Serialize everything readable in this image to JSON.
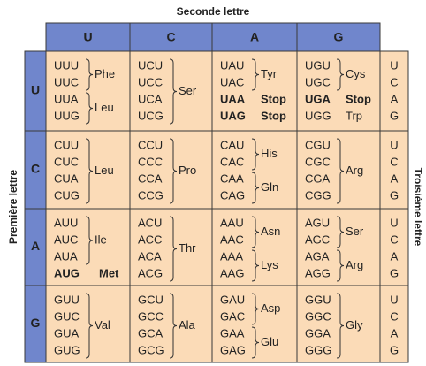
{
  "top_label": "Seconde lettre",
  "left_label": "Première lettre",
  "right_label": "Troisième lettre",
  "second_letters": [
    "U",
    "C",
    "A",
    "G"
  ],
  "first_letters": [
    "U",
    "C",
    "A",
    "G"
  ],
  "third_letters": [
    "U",
    "C",
    "A",
    "G"
  ],
  "cells": [
    [
      [
        {
          "codons": [
            "UUU",
            "UUC"
          ],
          "label": "Phe"
        },
        {
          "codons": [
            "UUA",
            "UUG"
          ],
          "label": "Leu"
        }
      ],
      [
        {
          "codons": [
            "UCU",
            "UCC",
            "UCA",
            "UCG"
          ],
          "label": "Ser"
        }
      ],
      [
        {
          "codons": [
            "UAU",
            "UAC"
          ],
          "label": "Tyr"
        },
        {
          "codons": [
            "UAA"
          ],
          "label": "Stop",
          "emphasis": "bold"
        },
        {
          "codons": [
            "UAG"
          ],
          "label": "Stop",
          "emphasis": "bold"
        }
      ],
      [
        {
          "codons": [
            "UGU",
            "UGC"
          ],
          "label": "Cys"
        },
        {
          "codons": [
            "UGA"
          ],
          "label": "Stop",
          "emphasis": "bold"
        },
        {
          "codons": [
            "UGG"
          ],
          "label": "Trp"
        }
      ]
    ],
    [
      [
        {
          "codons": [
            "CUU",
            "CUC",
            "CUA",
            "CUG"
          ],
          "label": "Leu"
        }
      ],
      [
        {
          "codons": [
            "CCU",
            "CCC",
            "CCA",
            "CCG"
          ],
          "label": "Pro"
        }
      ],
      [
        {
          "codons": [
            "CAU",
            "CAC"
          ],
          "label": "His"
        },
        {
          "codons": [
            "CAA",
            "CAG"
          ],
          "label": "Gln"
        }
      ],
      [
        {
          "codons": [
            "CGU",
            "CGC",
            "CGA",
            "CGG"
          ],
          "label": "Arg"
        }
      ]
    ],
    [
      [
        {
          "codons": [
            "AUU",
            "AUC",
            "AUA"
          ],
          "label": "Ile"
        },
        {
          "codons": [
            "AUG"
          ],
          "label": "Met",
          "emphasis": "red"
        }
      ],
      [
        {
          "codons": [
            "ACU",
            "ACC",
            "ACA",
            "ACG"
          ],
          "label": "Thr"
        }
      ],
      [
        {
          "codons": [
            "AAU",
            "AAC"
          ],
          "label": "Asn"
        },
        {
          "codons": [
            "AAA",
            "AAG"
          ],
          "label": "Lys"
        }
      ],
      [
        {
          "codons": [
            "AGU",
            "AGC"
          ],
          "label": "Ser"
        },
        {
          "codons": [
            "AGA",
            "AGG"
          ],
          "label": "Arg"
        }
      ]
    ],
    [
      [
        {
          "codons": [
            "GUU",
            "GUC",
            "GUA",
            "GUG"
          ],
          "label": "Val"
        }
      ],
      [
        {
          "codons": [
            "GCU",
            "GCC",
            "GCA",
            "GCG"
          ],
          "label": "Ala"
        }
      ],
      [
        {
          "codons": [
            "GAU",
            "GAC"
          ],
          "label": "Asp"
        },
        {
          "codons": [
            "GAA",
            "GAG"
          ],
          "label": "Glu"
        }
      ],
      [
        {
          "codons": [
            "GGU",
            "GGC",
            "GGA",
            "GGG"
          ],
          "label": "Gly"
        }
      ]
    ]
  ]
}
